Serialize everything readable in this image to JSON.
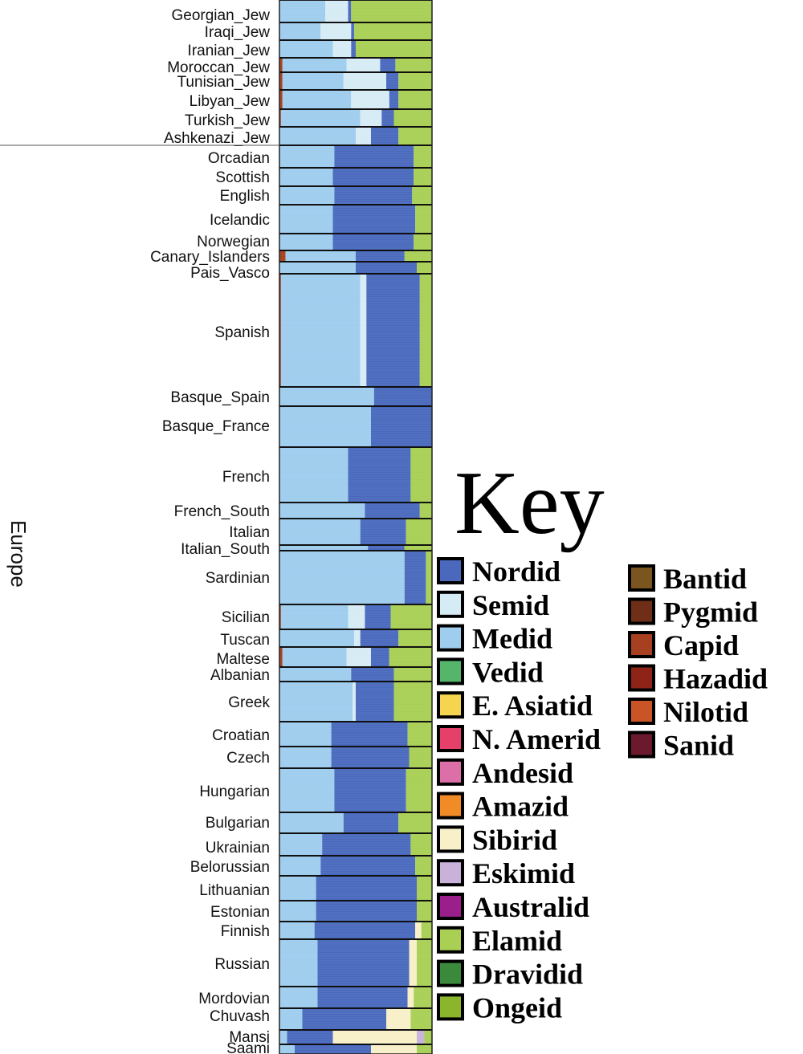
{
  "chart_data": {
    "type": "bar",
    "orientation": "horizontal-stacked",
    "region": "Europe",
    "key_title": "Key",
    "components": [
      {
        "name": "Nordid",
        "color": "#4a69bd"
      },
      {
        "name": "Semid",
        "color": "#d6ecf5"
      },
      {
        "name": "Medid",
        "color": "#9fcdee"
      },
      {
        "name": "Vedid",
        "color": "#55b56a"
      },
      {
        "name": "E. Asiatid",
        "color": "#f5d54f"
      },
      {
        "name": "N. Amerid",
        "color": "#e5406a"
      },
      {
        "name": "Andesid",
        "color": "#dd6fa8"
      },
      {
        "name": "Amazid",
        "color": "#f08b25"
      },
      {
        "name": "Sibirid",
        "color": "#f7f0c8"
      },
      {
        "name": "Eskimid",
        "color": "#c9b2d9"
      },
      {
        "name": "Australid",
        "color": "#9b1f8a"
      },
      {
        "name": "Elamid",
        "color": "#a9cf55"
      },
      {
        "name": "Dravidid",
        "color": "#3b8a3b"
      },
      {
        "name": "Ongeid",
        "color": "#8bb52c"
      },
      {
        "name": "Bantid",
        "color": "#7a5520"
      },
      {
        "name": "Pygmid",
        "color": "#6e2e18"
      },
      {
        "name": "Capid",
        "color": "#a64020"
      },
      {
        "name": "Hazadid",
        "color": "#8e2318"
      },
      {
        "name": "Nilotid",
        "color": "#c95526"
      },
      {
        "name": "Sanid",
        "color": "#6b1a2e"
      }
    ],
    "populations": [
      {
        "name": "Georgian_Jew",
        "Medid": 0.3,
        "Semid": 0.15,
        "Nordid": 0.02,
        "Elamid": 0.53
      },
      {
        "name": "Iraqi_Jew",
        "Medid": 0.27,
        "Semid": 0.2,
        "Nordid": 0.02,
        "Elamid": 0.51
      },
      {
        "name": "Iranian_Jew",
        "Medid": 0.35,
        "Semid": 0.12,
        "Nordid": 0.03,
        "Elamid": 0.5
      },
      {
        "name": "Moroccan_Jew",
        "Capid": 0.02,
        "Medid": 0.42,
        "Semid": 0.22,
        "Nordid": 0.1,
        "Elamid": 0.24
      },
      {
        "name": "Tunisian_Jew",
        "Capid": 0.02,
        "Medid": 0.4,
        "Semid": 0.28,
        "Nordid": 0.08,
        "Elamid": 0.22
      },
      {
        "name": "Libyan_Jew",
        "Capid": 0.02,
        "Medid": 0.45,
        "Semid": 0.25,
        "Nordid": 0.06,
        "Elamid": 0.22
      },
      {
        "name": "Turkish_Jew",
        "Capid": 0.01,
        "Medid": 0.52,
        "Semid": 0.14,
        "Nordid": 0.08,
        "Elamid": 0.25
      },
      {
        "name": "Ashkenazi_Jew",
        "Medid": 0.5,
        "Semid": 0.1,
        "Nordid": 0.18,
        "Elamid": 0.22
      },
      {
        "name": "Orcadian",
        "Medid": 0.36,
        "Nordid": 0.52,
        "Elamid": 0.12
      },
      {
        "name": "Scottish",
        "Medid": 0.35,
        "Nordid": 0.53,
        "Elamid": 0.12
      },
      {
        "name": "English",
        "Medid": 0.36,
        "Nordid": 0.51,
        "Elamid": 0.13
      },
      {
        "name": "Icelandic",
        "Medid": 0.35,
        "Nordid": 0.54,
        "Elamid": 0.11
      },
      {
        "name": "Norwegian",
        "Medid": 0.35,
        "Nordid": 0.53,
        "Elamid": 0.12
      },
      {
        "name": "Canary_Islanders",
        "Capid": 0.04,
        "Medid": 0.46,
        "Nordid": 0.32,
        "Elamid": 0.18
      },
      {
        "name": "Pais_Vasco",
        "Medid": 0.5,
        "Nordid": 0.4,
        "Elamid": 0.1
      },
      {
        "name": "Spanish",
        "Capid": 0.01,
        "Medid": 0.52,
        "Semid": 0.04,
        "Nordid": 0.35,
        "Elamid": 0.08
      },
      {
        "name": "Basque_Spain",
        "Medid": 0.62,
        "Nordid": 0.38
      },
      {
        "name": "Basque_France",
        "Medid": 0.6,
        "Nordid": 0.4
      },
      {
        "name": "French",
        "Medid": 0.45,
        "Nordid": 0.41,
        "Elamid": 0.14
      },
      {
        "name": "French_South",
        "Medid": 0.56,
        "Nordid": 0.36,
        "Elamid": 0.08
      },
      {
        "name": "Italian",
        "Medid": 0.53,
        "Nordid": 0.3,
        "Elamid": 0.17
      },
      {
        "name": "Italian_South",
        "Medid": 0.58,
        "Nordid": 0.24,
        "Elamid": 0.18
      },
      {
        "name": "Sardinian",
        "Medid": 0.82,
        "Nordid": 0.14,
        "Elamid": 0.04
      },
      {
        "name": "Sicilian",
        "Capid": 0.01,
        "Medid": 0.44,
        "Semid": 0.11,
        "Nordid": 0.17,
        "Elamid": 0.27
      },
      {
        "name": "Tuscan",
        "Medid": 0.49,
        "Semid": 0.04,
        "Nordid": 0.25,
        "Elamid": 0.22
      },
      {
        "name": "Maltese",
        "Capid": 0.02,
        "Medid": 0.42,
        "Semid": 0.16,
        "Nordid": 0.12,
        "Elamid": 0.28
      },
      {
        "name": "Albanian",
        "Medid": 0.47,
        "Nordid": 0.28,
        "Elamid": 0.25
      },
      {
        "name": "Greek",
        "Medid": 0.48,
        "Semid": 0.02,
        "Nordid": 0.25,
        "Elamid": 0.25
      },
      {
        "name": "Croatian",
        "Medid": 0.34,
        "Nordid": 0.5,
        "Elamid": 0.16
      },
      {
        "name": "Czech",
        "Medid": 0.34,
        "Nordid": 0.51,
        "Elamid": 0.15
      },
      {
        "name": "Hungarian",
        "Medid": 0.36,
        "Nordid": 0.47,
        "Elamid": 0.17
      },
      {
        "name": "Bulgarian",
        "Medid": 0.42,
        "Nordid": 0.36,
        "Elamid": 0.22
      },
      {
        "name": "Ukrainian",
        "Medid": 0.28,
        "Nordid": 0.58,
        "Elamid": 0.14
      },
      {
        "name": "Belorussian",
        "Medid": 0.27,
        "Nordid": 0.62,
        "Elamid": 0.11
      },
      {
        "name": "Lithuanian",
        "Medid": 0.24,
        "Nordid": 0.66,
        "Elamid": 0.1
      },
      {
        "name": "Estonian",
        "Medid": 0.24,
        "Nordid": 0.66,
        "Elamid": 0.1
      },
      {
        "name": "Finnish",
        "Medid": 0.23,
        "Nordid": 0.66,
        "Sibirid": 0.04,
        "Elamid": 0.07
      },
      {
        "name": "Russian",
        "Medid": 0.25,
        "Nordid": 0.6,
        "Sibirid": 0.05,
        "Elamid": 0.1
      },
      {
        "name": "Mordovian",
        "Medid": 0.25,
        "Nordid": 0.59,
        "Sibirid": 0.04,
        "Elamid": 0.12
      },
      {
        "name": "Chuvash",
        "Medid": 0.15,
        "Nordid": 0.55,
        "Sibirid": 0.16,
        "Elamid": 0.14
      },
      {
        "name": "Mansi",
        "Medid": 0.05,
        "Nordid": 0.3,
        "Sibirid": 0.55,
        "Eskimid": 0.05,
        "Elamid": 0.05
      },
      {
        "name": "Saami",
        "Medid": 0.1,
        "Nordid": 0.5,
        "Sibirid": 0.3,
        "Elamid": 0.1
      }
    ]
  }
}
